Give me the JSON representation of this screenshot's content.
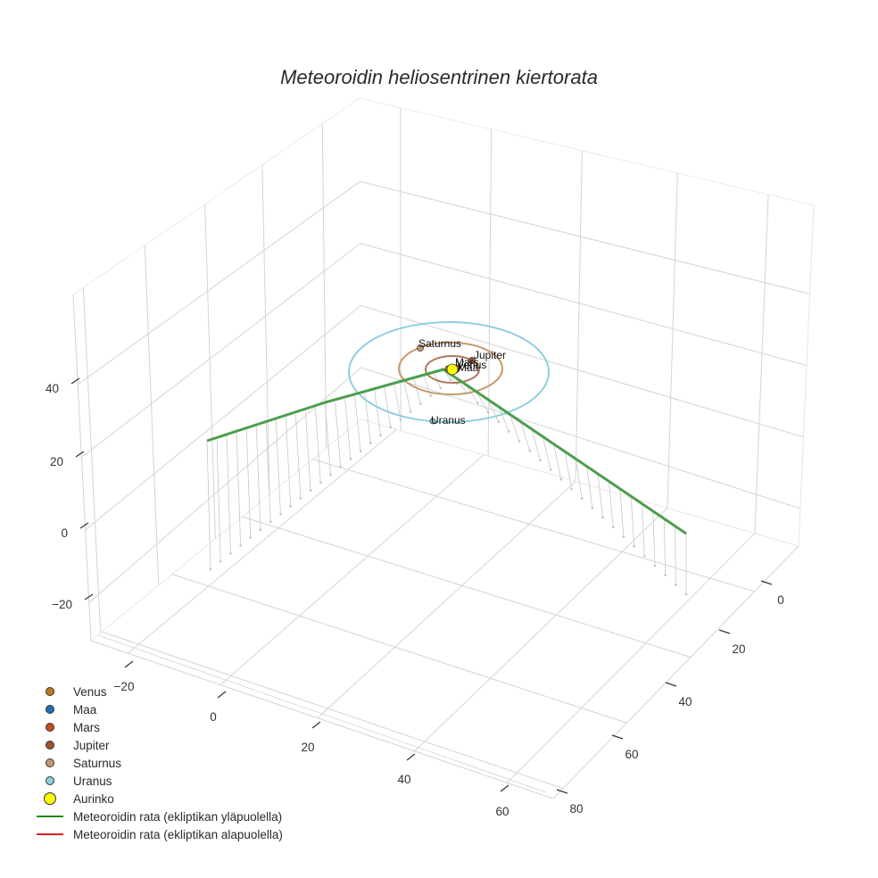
{
  "title": "Meteoroidin heliosentrinen kiertorata",
  "colors": {
    "venus": "#c07a1e",
    "maa": "#1f6fb4",
    "mars": "#c84a1e",
    "jupiter": "#a0522d",
    "saturnus": "#c49a6c",
    "uranus": "#8ecfe0",
    "aurinko": "#ffff00",
    "rata_yla": "#1a8a1a",
    "rata_ala": "#e02020",
    "grid": "#d0d0d0"
  },
  "axes": {
    "z_ticks": [
      "40",
      "20",
      "0",
      "−20"
    ],
    "x_ticks": [
      "−20",
      "0",
      "20",
      "40",
      "60"
    ],
    "y_ticks": [
      "0",
      "20",
      "40",
      "60",
      "80"
    ]
  },
  "plot_labels": {
    "saturnus": "Saturnus",
    "jupiter": "Jupiter",
    "mars": "Mars",
    "venus": "Venus",
    "maa": "Maa",
    "uranus": "Uranus"
  },
  "legend": [
    {
      "label": "Venus",
      "type": "dot",
      "color": "#c07a1e"
    },
    {
      "label": "Maa",
      "type": "dot",
      "color": "#1f6fb4"
    },
    {
      "label": "Mars",
      "type": "dot",
      "color": "#c84a1e"
    },
    {
      "label": "Jupiter",
      "type": "dot",
      "color": "#a0522d"
    },
    {
      "label": "Saturnus",
      "type": "dot",
      "color": "#c49a6c"
    },
    {
      "label": "Uranus",
      "type": "dot",
      "color": "#8ecfe0"
    },
    {
      "label": "Aurinko",
      "type": "bigdot",
      "color": "#ffff00"
    },
    {
      "label": "Meteoroidin rata (ekliptikan yläpuolella)",
      "type": "line",
      "color": "#1a8a1a"
    },
    {
      "label": "Meteoroidin rata (ekliptikan alapuolella)",
      "type": "line",
      "color": "#e02020"
    }
  ],
  "chart_data": {
    "type": "scatter3d",
    "title": "Meteoroidin heliosentrinen kiertorata",
    "xlabel": "",
    "ylabel": "",
    "zlabel": "",
    "x_ticks": [
      -20,
      0,
      20,
      40,
      60
    ],
    "y_ticks": [
      0,
      20,
      40,
      60,
      80
    ],
    "z_ticks": [
      -20,
      0,
      20,
      40
    ],
    "xlim": [
      -30,
      70
    ],
    "ylim": [
      -10,
      85
    ],
    "zlim": [
      -30,
      55
    ],
    "grid": true,
    "legend_position": "bottom-left",
    "series": [
      {
        "name": "Venus",
        "kind": "marker+orbit",
        "orbit_radius_au": 0.72,
        "color": "#c07a1e"
      },
      {
        "name": "Maa",
        "kind": "marker+orbit",
        "orbit_radius_au": 1.0,
        "color": "#1f6fb4"
      },
      {
        "name": "Mars",
        "kind": "marker+orbit",
        "orbit_radius_au": 1.52,
        "color": "#c84a1e"
      },
      {
        "name": "Jupiter",
        "kind": "marker+orbit",
        "orbit_radius_au": 5.2,
        "color": "#a0522d"
      },
      {
        "name": "Saturnus",
        "kind": "marker+orbit",
        "orbit_radius_au": 9.5,
        "color": "#c49a6c"
      },
      {
        "name": "Uranus",
        "kind": "marker+orbit",
        "orbit_radius_au": 19.2,
        "color": "#8ecfe0"
      },
      {
        "name": "Aurinko",
        "kind": "marker",
        "x": 0,
        "y": 0,
        "z": 0,
        "color": "#ffff00"
      },
      {
        "name": "Meteoroidin rata (ekliptikan yläpuolella)",
        "kind": "line",
        "color": "#1a8a1a",
        "points_approx": [
          [
            -25,
            70,
            25
          ],
          [
            0,
            0,
            0
          ],
          [
            60,
            -5,
            18
          ]
        ]
      },
      {
        "name": "Meteoroidin rata (ekliptikan alapuolella)",
        "kind": "line",
        "color": "#e02020",
        "points_approx": []
      }
    ]
  }
}
